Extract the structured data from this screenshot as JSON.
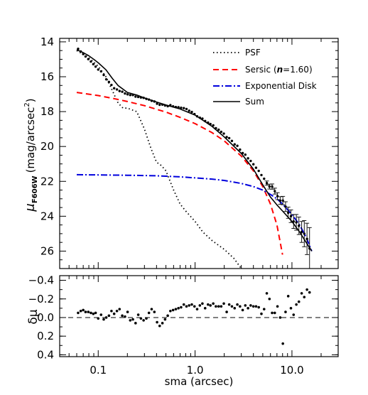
{
  "chart_data": [
    {
      "type": "line",
      "xscale": "log",
      "xlim": [
        0.04,
        30
      ],
      "ylim": [
        27.0,
        13.8
      ],
      "y_inverted": true,
      "yticks": [
        14,
        16,
        18,
        20,
        22,
        24,
        26
      ],
      "ylabel_main": "μ",
      "ylabel_sub": "F606W",
      "ylabel_units": "(mag/arcsec",
      "ylabel_sup": "2",
      "ylabel_close": ")",
      "legend_position": "top-right",
      "series": [
        {
          "name": "PSF",
          "style": "dotted",
          "color": "#000000",
          "x": [
            0.06,
            0.08,
            0.1,
            0.12,
            0.14,
            0.16,
            0.18,
            0.2,
            0.25,
            0.3,
            0.35,
            0.4,
            0.45,
            0.5,
            0.6,
            0.7,
            0.8,
            1.0,
            1.2,
            1.5,
            2.0,
            2.5,
            3.0,
            3.3
          ],
          "y": [
            14.5,
            14.9,
            15.4,
            16.0,
            16.8,
            17.5,
            17.8,
            17.8,
            18.0,
            19.0,
            20.1,
            20.9,
            21.1,
            21.4,
            22.5,
            23.3,
            23.7,
            24.3,
            24.9,
            25.4,
            25.9,
            26.4,
            27.0,
            27.4
          ]
        },
        {
          "name": "Sersic",
          "legend_math": "n",
          "legend_value": "=1.60",
          "style": "dashed",
          "color": "#ff0000",
          "x": [
            0.06,
            0.1,
            0.15,
            0.2,
            0.3,
            0.5,
            0.7,
            1.0,
            1.5,
            2.0,
            3.0,
            4.0,
            5.0,
            6.0,
            7.0,
            8.0
          ],
          "y": [
            16.9,
            17.08,
            17.27,
            17.42,
            17.66,
            18.03,
            18.33,
            18.69,
            19.21,
            19.68,
            20.55,
            21.4,
            22.3,
            23.3,
            24.5,
            26.2
          ]
        },
        {
          "name": "Exponential Disk",
          "style": "dash-dot",
          "color": "#0000dd",
          "x": [
            0.06,
            0.1,
            0.2,
            0.4,
            0.7,
            1.0,
            1.5,
            2.0,
            3.0,
            4.0,
            5.0,
            6.0,
            7.0,
            8.0,
            10.0,
            12.0,
            14.0,
            16.0
          ],
          "y": [
            21.62,
            21.63,
            21.65,
            21.68,
            21.74,
            21.8,
            21.87,
            21.95,
            22.12,
            22.3,
            22.5,
            22.75,
            23.0,
            23.3,
            23.9,
            24.5,
            25.2,
            26.0
          ]
        },
        {
          "name": "Sum",
          "style": "solid",
          "color": "#000000",
          "x": [
            0.06,
            0.07,
            0.08,
            0.09,
            0.1,
            0.12,
            0.14,
            0.16,
            0.2,
            0.25,
            0.3,
            0.4,
            0.5,
            0.7,
            1.0,
            1.5,
            2.0,
            3.0,
            4.0,
            5.0,
            6.0,
            7.0,
            8.0,
            10.0,
            12.0,
            14.0,
            16.0
          ],
          "y": [
            14.45,
            14.62,
            14.8,
            15.0,
            15.2,
            15.6,
            16.1,
            16.5,
            16.9,
            17.05,
            17.22,
            17.45,
            17.62,
            17.85,
            18.2,
            18.85,
            19.45,
            20.4,
            21.3,
            22.2,
            22.9,
            23.35,
            23.7,
            24.3,
            24.9,
            25.5,
            26.0
          ]
        }
      ],
      "observed": {
        "x": [
          0.062,
          0.066,
          0.07,
          0.074,
          0.079,
          0.084,
          0.089,
          0.094,
          0.1,
          0.107,
          0.114,
          0.121,
          0.129,
          0.137,
          0.146,
          0.156,
          0.166,
          0.177,
          0.189,
          0.201,
          0.214,
          0.228,
          0.243,
          0.259,
          0.276,
          0.294,
          0.314,
          0.334,
          0.356,
          0.38,
          0.405,
          0.431,
          0.46,
          0.49,
          0.522,
          0.556,
          0.593,
          0.632,
          0.673,
          0.717,
          0.765,
          0.815,
          0.868,
          0.925,
          0.986,
          1.05,
          1.12,
          1.19,
          1.27,
          1.36,
          1.44,
          1.54,
          1.64,
          1.75,
          1.86,
          1.98,
          2.12,
          2.25,
          2.4,
          2.56,
          2.73,
          2.91,
          3.1,
          3.3,
          3.52,
          3.75,
          4.0,
          4.26,
          4.54,
          4.84,
          5.16,
          5.5,
          5.86,
          6.24,
          6.65,
          7.09,
          7.56,
          8.06,
          8.59,
          9.15,
          9.76,
          10.4,
          11.1,
          11.8,
          12.6,
          13.4,
          14.3,
          15.2
        ],
        "y": [
          14.4,
          14.55,
          14.7,
          14.84,
          14.99,
          15.13,
          15.28,
          15.42,
          15.59,
          15.69,
          15.9,
          16.15,
          16.3,
          16.47,
          16.66,
          16.73,
          16.82,
          16.86,
          16.96,
          17.01,
          17.05,
          17.05,
          17.14,
          17.16,
          17.19,
          17.21,
          17.27,
          17.31,
          17.38,
          17.42,
          17.55,
          17.61,
          17.6,
          17.65,
          17.69,
          17.63,
          17.7,
          17.74,
          17.75,
          17.78,
          17.8,
          17.85,
          17.95,
          18.02,
          18.14,
          18.27,
          18.35,
          18.4,
          18.54,
          18.63,
          18.71,
          18.79,
          18.95,
          19.04,
          19.16,
          19.26,
          19.46,
          19.52,
          19.68,
          19.88,
          19.96,
          20.18,
          20.38,
          20.47,
          20.68,
          20.83,
          21.02,
          21.22,
          21.4,
          21.64,
          21.85,
          22.1,
          22.3,
          22.3,
          22.56,
          22.85,
          23.1,
          23.1,
          23.45,
          23.8,
          24.0,
          24.3,
          24.35,
          24.55,
          24.9,
          25.0,
          25.3,
          25.85
        ],
        "yerr": [
          0.05,
          0.05,
          0.05,
          0.05,
          0.05,
          0.05,
          0.05,
          0.05,
          0.05,
          0.05,
          0.05,
          0.05,
          0.05,
          0.05,
          0.05,
          0.05,
          0.05,
          0.05,
          0.05,
          0.05,
          0.05,
          0.05,
          0.05,
          0.05,
          0.05,
          0.05,
          0.05,
          0.05,
          0.05,
          0.05,
          0.05,
          0.05,
          0.05,
          0.05,
          0.05,
          0.05,
          0.05,
          0.05,
          0.05,
          0.05,
          0.05,
          0.05,
          0.05,
          0.05,
          0.05,
          0.05,
          0.05,
          0.05,
          0.05,
          0.05,
          0.05,
          0.05,
          0.05,
          0.05,
          0.05,
          0.05,
          0.05,
          0.05,
          0.05,
          0.05,
          0.05,
          0.05,
          0.05,
          0.05,
          0.06,
          0.06,
          0.07,
          0.08,
          0.08,
          0.1,
          0.1,
          0.12,
          0.14,
          0.15,
          0.17,
          0.2,
          0.22,
          0.24,
          0.28,
          0.32,
          0.36,
          0.4,
          0.45,
          0.5,
          0.6,
          0.75,
          0.9,
          1.2
        ]
      }
    },
    {
      "type": "scatter",
      "xscale": "log",
      "xlim": [
        0.04,
        30
      ],
      "xlabel": "sma (arcsec)",
      "xticks": [
        0.1,
        1.0,
        10.0
      ],
      "xtick_labels": [
        "0.1",
        "1.0",
        "10.0"
      ],
      "ylabel": "δμ",
      "ylim": [
        0.42,
        -0.45
      ],
      "y_inverted": true,
      "yticks": [
        -0.4,
        -0.2,
        0.0,
        0.2,
        0.4
      ],
      "ytick_labels": [
        "−0.4",
        "−0.2",
        "0.0",
        "0.2",
        "0.4"
      ],
      "reference_line": 0.0,
      "x": [
        0.062,
        0.066,
        0.07,
        0.074,
        0.079,
        0.084,
        0.089,
        0.094,
        0.1,
        0.107,
        0.114,
        0.121,
        0.129,
        0.137,
        0.146,
        0.156,
        0.166,
        0.177,
        0.189,
        0.201,
        0.214,
        0.228,
        0.243,
        0.259,
        0.276,
        0.294,
        0.314,
        0.334,
        0.356,
        0.38,
        0.405,
        0.431,
        0.46,
        0.49,
        0.522,
        0.556,
        0.593,
        0.632,
        0.673,
        0.717,
        0.765,
        0.815,
        0.868,
        0.925,
        0.986,
        1.05,
        1.12,
        1.19,
        1.27,
        1.36,
        1.44,
        1.54,
        1.64,
        1.75,
        1.86,
        1.98,
        2.12,
        2.25,
        2.4,
        2.56,
        2.73,
        2.91,
        3.1,
        3.3,
        3.52,
        3.75,
        4.0,
        4.26,
        4.54,
        4.84,
        5.16,
        5.5,
        5.86,
        6.24,
        6.65,
        7.09,
        7.56,
        8.06,
        8.59,
        9.15,
        9.76,
        10.4,
        11.1,
        11.8,
        12.6,
        13.4,
        14.3,
        15.2
      ],
      "y": [
        -0.05,
        -0.07,
        -0.08,
        -0.06,
        -0.06,
        -0.05,
        -0.04,
        -0.05,
        0.01,
        -0.03,
        0.02,
        0.0,
        -0.02,
        -0.07,
        -0.04,
        -0.07,
        -0.09,
        -0.02,
        -0.01,
        -0.06,
        0.03,
        0.02,
        0.06,
        -0.03,
        0.01,
        0.03,
        0.01,
        -0.05,
        -0.09,
        -0.06,
        0.05,
        0.09,
        0.06,
        0.02,
        -0.02,
        -0.07,
        -0.08,
        -0.09,
        -0.1,
        -0.11,
        -0.14,
        -0.12,
        -0.13,
        -0.14,
        -0.12,
        -0.09,
        -0.13,
        -0.15,
        -0.1,
        -0.14,
        -0.13,
        -0.15,
        -0.12,
        -0.12,
        -0.12,
        -0.15,
        -0.06,
        -0.14,
        -0.12,
        -0.1,
        -0.14,
        -0.12,
        -0.08,
        -0.13,
        -0.1,
        -0.13,
        -0.12,
        -0.12,
        -0.11,
        -0.04,
        -0.09,
        -0.26,
        -0.2,
        -0.05,
        -0.05,
        -0.12,
        0.0,
        0.28,
        -0.06,
        -0.23,
        -0.1,
        -0.03,
        -0.14,
        -0.17,
        -0.26,
        -0.22,
        -0.3,
        -0.27
      ]
    }
  ]
}
